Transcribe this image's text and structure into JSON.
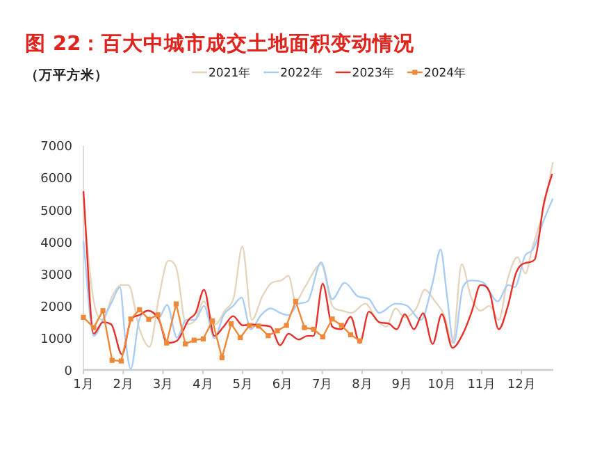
{
  "chart_data": {
    "type": "line",
    "title": "图 22：百大中城市成交土地面积变动情况",
    "ylabel": "（万平方米）",
    "xlim": [
      1,
      12.8
    ],
    "xticks": [
      {
        "value": 1,
        "label": "1月"
      },
      {
        "value": 2,
        "label": "2月"
      },
      {
        "value": 3,
        "label": "3月"
      },
      {
        "value": 4,
        "label": "4月"
      },
      {
        "value": 5,
        "label": "5月"
      },
      {
        "value": 6,
        "label": "6月"
      },
      {
        "value": 7,
        "label": "7月"
      },
      {
        "value": 8,
        "label": "8月"
      },
      {
        "value": 9,
        "label": "9月"
      },
      {
        "value": 10,
        "label": "10月"
      },
      {
        "value": 11,
        "label": "11月"
      },
      {
        "value": 12,
        "label": "12月"
      }
    ],
    "ylim": [
      0,
      7000
    ],
    "yticks": [
      0,
      1000,
      2000,
      3000,
      4000,
      5000,
      6000,
      7000
    ],
    "grid": false,
    "legend": "top",
    "series": [
      {
        "name": "2021年",
        "color": "#e6d5bd",
        "x": [
          1.0,
          1.26,
          1.49,
          1.72,
          1.95,
          2.13,
          2.41,
          2.66,
          2.9,
          3.13,
          3.34,
          3.58,
          3.81,
          4.02,
          4.31,
          4.55,
          4.78,
          4.99,
          5.23,
          5.49,
          5.73,
          5.96,
          6.15,
          6.33,
          6.56,
          6.97,
          7.25,
          7.5,
          7.73,
          8.08,
          8.37,
          8.6,
          8.84,
          9.07,
          9.36,
          9.57,
          9.83,
          10.06,
          10.27,
          10.5,
          10.73,
          10.97,
          11.2,
          11.43,
          11.66,
          11.9,
          12.1,
          12.27,
          12.5,
          12.79
        ],
        "values": [
          5000,
          2140,
          1560,
          2290,
          2650,
          2650,
          1270,
          720,
          2290,
          3410,
          3150,
          1420,
          1560,
          2140,
          1420,
          1850,
          2290,
          3850,
          1560,
          2290,
          2720,
          2790,
          2940,
          2140,
          2580,
          3300,
          2000,
          1850,
          1780,
          2070,
          1560,
          1350,
          1920,
          1640,
          1920,
          2500,
          2140,
          1710,
          840,
          3300,
          2290,
          1850,
          2000,
          1560,
          2860,
          3520,
          3010,
          3800,
          4750,
          6480
        ]
      },
      {
        "name": "2022年",
        "color": "#a9cdf5",
        "x": [
          1.0,
          1.26,
          1.49,
          1.72,
          1.92,
          2.05,
          2.19,
          2.4,
          2.66,
          2.9,
          3.1,
          3.35,
          3.58,
          3.8,
          4.03,
          4.29,
          4.52,
          4.76,
          4.97,
          5.2,
          5.46,
          5.7,
          5.94,
          6.15,
          6.41,
          6.63,
          6.97,
          7.25,
          7.56,
          7.9,
          8.17,
          8.43,
          8.84,
          9.13,
          9.48,
          9.77,
          9.97,
          10.12,
          10.3,
          10.53,
          10.76,
          11.05,
          11.4,
          11.67,
          11.83,
          12.1,
          12.27,
          12.56,
          12.79
        ],
        "values": [
          4020,
          1060,
          1560,
          2140,
          2580,
          990,
          40,
          1560,
          1850,
          1640,
          2030,
          1010,
          1560,
          1560,
          2000,
          990,
          1710,
          2000,
          2260,
          1270,
          1710,
          1920,
          1780,
          1710,
          2070,
          2140,
          3360,
          2210,
          2720,
          2290,
          2210,
          1780,
          2070,
          2000,
          1560,
          2720,
          3760,
          2430,
          840,
          2580,
          2790,
          2720,
          2140,
          2650,
          2580,
          3590,
          3730,
          4670,
          5350
        ]
      },
      {
        "name": "2023年",
        "color": "#e8302a",
        "x": [
          1.0,
          1.26,
          1.49,
          1.7,
          1.97,
          2.19,
          2.4,
          2.62,
          2.9,
          3.1,
          3.35,
          3.64,
          3.82,
          4.03,
          4.29,
          4.52,
          4.76,
          5.0,
          5.23,
          5.46,
          5.7,
          5.94,
          6.15,
          6.41,
          6.62,
          6.78,
          7.01,
          7.25,
          7.48,
          7.71,
          7.94,
          8.17,
          8.43,
          8.66,
          8.87,
          9.07,
          9.3,
          9.53,
          9.77,
          10.0,
          10.27,
          10.53,
          10.76,
          10.97,
          11.2,
          11.43,
          11.66,
          11.86,
          12.1,
          12.33,
          12.56,
          12.77
        ],
        "values": [
          5580,
          1130,
          1490,
          1420,
          480,
          1560,
          1710,
          1850,
          1560,
          840,
          910,
          1560,
          1780,
          2500,
          1060,
          1350,
          1680,
          1390,
          1420,
          1390,
          1350,
          770,
          1130,
          950,
          1060,
          1060,
          2690,
          1350,
          1270,
          1660,
          840,
          1820,
          1490,
          1450,
          1270,
          1740,
          1270,
          1770,
          810,
          1740,
          690,
          1130,
          1850,
          2650,
          2430,
          1270,
          2000,
          3010,
          3340,
          3440,
          5180,
          6120
        ]
      },
      {
        "name": "2024年",
        "color": "#f0883a",
        "type": "line",
        "marker": "square",
        "x": [
          1.0,
          1.26,
          1.49,
          1.72,
          1.95,
          2.19,
          2.41,
          2.64,
          2.87,
          3.09,
          3.33,
          3.56,
          3.78,
          4.01,
          4.24,
          4.48,
          4.71,
          4.94,
          5.17,
          5.4,
          5.64,
          5.87,
          6.1,
          6.33,
          6.55,
          6.78,
          7.01,
          7.25,
          7.48,
          7.71,
          7.94
        ],
        "values": [
          1640,
          1320,
          1850,
          300,
          280,
          1590,
          1880,
          1580,
          1720,
          840,
          2060,
          810,
          930,
          970,
          1530,
          380,
          1440,
          1010,
          1390,
          1370,
          1070,
          1220,
          1390,
          2140,
          1320,
          1270,
          1030,
          1590,
          1390,
          1100,
          910
        ]
      }
    ]
  }
}
